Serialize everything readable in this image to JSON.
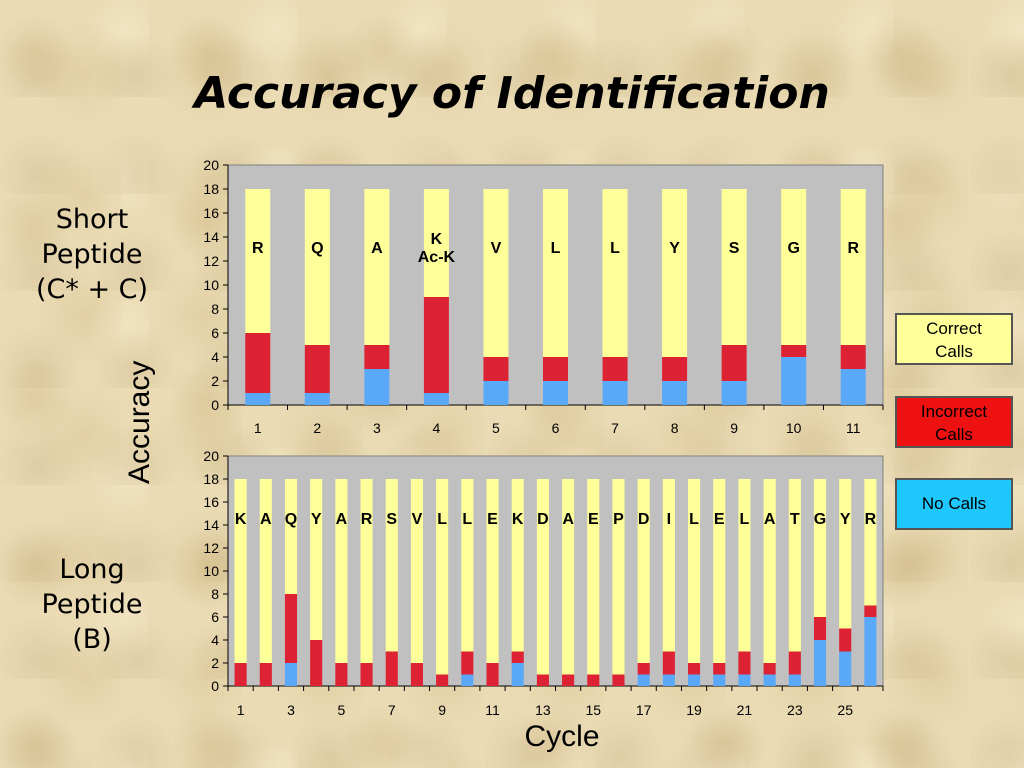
{
  "title": "Accuracy of Identification",
  "short_label": [
    "Short",
    "Peptide",
    "(C* + C)"
  ],
  "long_label": [
    "Long",
    "Peptide",
    "(B)"
  ],
  "y_axis_label": "Accuracy",
  "x_axis_label": "Cycle",
  "legend": {
    "correct": [
      "Correct",
      "Calls"
    ],
    "incorrect": [
      "Incorrect",
      "Calls"
    ],
    "no_calls": "No Calls"
  },
  "colors": {
    "correct": "#ffff99",
    "incorrect": "#dd2233",
    "no_calls": "#5aa8f8",
    "plot_bg": "#c0c0c0"
  },
  "chart_data": [
    {
      "type": "bar",
      "stacked": true,
      "ylim": [
        0,
        20
      ],
      "yticks": [
        0,
        2,
        4,
        6,
        8,
        10,
        12,
        14,
        16,
        18,
        20
      ],
      "categories": [
        "1",
        "2",
        "3",
        "4",
        "5",
        "6",
        "7",
        "8",
        "9",
        "10",
        "11"
      ],
      "x_tick_labels": [
        "1",
        "2",
        "3",
        "4",
        "5",
        "6",
        "7",
        "8",
        "9",
        "10",
        "11"
      ],
      "residue_labels": [
        "R",
        "Q",
        "A",
        "K\nAc-K",
        "V",
        "L",
        "L",
        "Y",
        "S",
        "G",
        "R"
      ],
      "series": [
        {
          "name": "No Calls",
          "values": [
            1,
            1,
            3,
            1,
            2,
            2,
            2,
            2,
            2,
            4,
            3
          ]
        },
        {
          "name": "Incorrect Calls",
          "values": [
            5,
            4,
            2,
            8,
            2,
            2,
            2,
            2,
            3,
            1,
            2
          ]
        },
        {
          "name": "Correct Calls",
          "values": [
            12,
            13,
            13,
            9,
            14,
            14,
            14,
            14,
            13,
            13,
            13
          ]
        }
      ]
    },
    {
      "type": "bar",
      "stacked": true,
      "ylim": [
        0,
        20
      ],
      "yticks": [
        0,
        2,
        4,
        6,
        8,
        10,
        12,
        14,
        16,
        18,
        20
      ],
      "categories": [
        "1",
        "2",
        "3",
        "4",
        "5",
        "6",
        "7",
        "8",
        "9",
        "10",
        "11",
        "12",
        "13",
        "14",
        "15",
        "16",
        "17",
        "18",
        "19",
        "20",
        "21",
        "22",
        "23",
        "24",
        "25",
        "26"
      ],
      "x_tick_labels": [
        "1",
        "",
        "3",
        "",
        "5",
        "",
        "7",
        "",
        "9",
        "",
        "11",
        "",
        "13",
        "",
        "15",
        "",
        "17",
        "",
        "19",
        "",
        "21",
        "",
        "23",
        "",
        "25",
        ""
      ],
      "residue_labels": [
        "K",
        "A",
        "Q",
        "Y",
        "A",
        "R",
        "S",
        "V",
        "L",
        "L",
        "E",
        "K",
        "D",
        "A",
        "E",
        "P",
        "D",
        "I",
        "L",
        "E",
        "L",
        "A",
        "T",
        "G",
        "Y",
        "R"
      ],
      "series": [
        {
          "name": "No Calls",
          "values": [
            0,
            0,
            2,
            0,
            0,
            0,
            0,
            0,
            0,
            1,
            0,
            2,
            0,
            0,
            0,
            0,
            1,
            1,
            1,
            1,
            1,
            1,
            1,
            4,
            3,
            6
          ]
        },
        {
          "name": "Incorrect Calls",
          "values": [
            2,
            2,
            6,
            4,
            2,
            2,
            3,
            2,
            1,
            2,
            2,
            1,
            1,
            1,
            1,
            1,
            1,
            2,
            1,
            1,
            2,
            1,
            2,
            2,
            2,
            1
          ]
        },
        {
          "name": "Correct Calls",
          "values": [
            16,
            16,
            10,
            14,
            16,
            16,
            15,
            16,
            17,
            15,
            16,
            15,
            17,
            17,
            17,
            17,
            16,
            15,
            16,
            16,
            15,
            16,
            15,
            12,
            13,
            11
          ]
        }
      ]
    }
  ]
}
